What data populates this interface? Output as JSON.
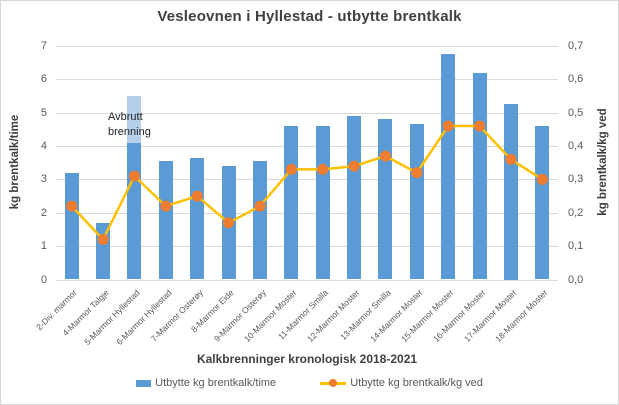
{
  "chart_data": {
    "type": "bar+line combo",
    "title": "Vesleovnen i Hyllestad - utbytte brentkalk",
    "xlabel": "Kalkbrenninger kronologisk 2018-2021",
    "categories": [
      "2-Div. marmor",
      "4-Marmor Talgje",
      "5-Marmor Hyllestad",
      "6-Marmor Hyllestad",
      "7-Marmor Osterøy",
      "8-Marmor Eide",
      "9-Marmor Osterøy",
      "10-Marmor Moster",
      "11-Marmor Smilla",
      "12-Marmor Moster",
      "13-Marmor Smilla",
      "14-Marmor Moster",
      "15-Marmor Moster",
      "16-Marmor Moster",
      "17-Marmor Moster",
      "18-Marmor Moster"
    ],
    "series": [
      {
        "name": "Utbytte kg brentkalk/time",
        "type": "bar",
        "axis": "left",
        "color": "#5B9BD5",
        "values": [
          3.2,
          1.7,
          5.5,
          3.55,
          3.65,
          3.4,
          3.55,
          4.6,
          4.6,
          4.9,
          4.8,
          4.65,
          6.75,
          6.2,
          5.25,
          4.6
        ]
      },
      {
        "name": "Utbytte kg brentkalk/kg ved",
        "type": "line",
        "axis": "right",
        "line_color": "#FFC000",
        "marker_color": "#ED7D31",
        "values": [
          0.22,
          0.12,
          0.31,
          0.22,
          0.25,
          0.17,
          0.22,
          0.33,
          0.33,
          0.34,
          0.37,
          0.32,
          0.46,
          0.46,
          0.36,
          0.3
        ]
      }
    ],
    "left_axis": {
      "label": "kg brentkalk/time",
      "min": 0,
      "max": 7,
      "step": 1,
      "tick_labels": [
        "7",
        "6",
        "5",
        "4",
        "3",
        "2",
        "1",
        "0"
      ]
    },
    "right_axis": {
      "label": "kg brentkalk/kg ved",
      "min": 0,
      "max": 0.7,
      "step": 0.1,
      "tick_labels": [
        "0,7",
        "0,6",
        "0,5",
        "0,4",
        "0,3",
        "0,2",
        "0,1",
        "0,0"
      ]
    },
    "annotation": {
      "text": "Avbrutt brenning",
      "target_category": "5-Marmor Hyllestad"
    },
    "bar_highlight": {
      "category_index": 2,
      "from": 4.1,
      "to": 5.5,
      "color": "#B4D0EB",
      "note": "lighter top segment of aborted-burn bar"
    },
    "grid": true,
    "legend_position": "bottom",
    "colors": {
      "bar": "#5B9BD5",
      "bar_light": "#B4D0EB",
      "line": "#FFC000",
      "marker": "#ED7D31",
      "gridline": "#D9D9D9",
      "title_text": "#404040",
      "tick_text": "#595959"
    }
  }
}
